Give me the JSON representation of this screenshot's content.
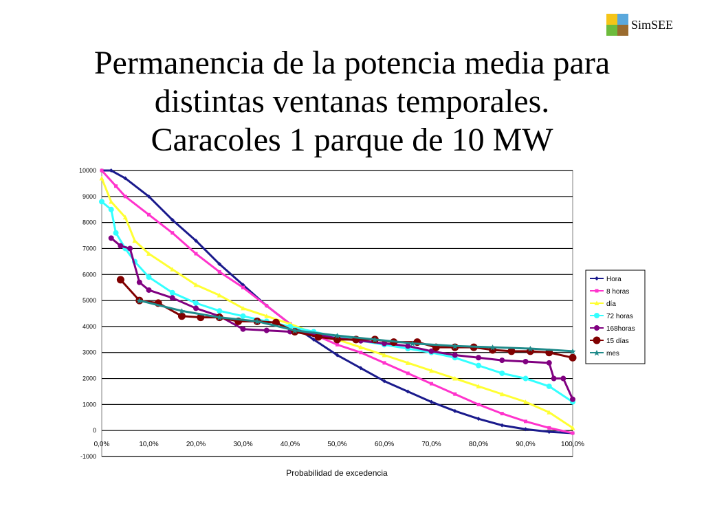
{
  "logo": {
    "text": "SimSEE",
    "colors": [
      "#f5c518",
      "#5aa8dc",
      "#6dbb3c",
      "#9a6b2e"
    ]
  },
  "slide": {
    "title_lines": [
      "Permanencia de la potencia media para",
      "distintas ventanas temporales.",
      "Caracoles 1 parque de 10 MW"
    ]
  },
  "chart_data": {
    "type": "line",
    "title": "",
    "xlabel": "Probabilidad de excedencia",
    "ylabel": "",
    "xlim": [
      0,
      100
    ],
    "ylim": [
      -1000,
      10000
    ],
    "x_ticks": [
      "0,0%",
      "10,0%",
      "20,0%",
      "30,0%",
      "40,0%",
      "50,0%",
      "60,0%",
      "70,0%",
      "80,0%",
      "90,0%",
      "100,0%"
    ],
    "y_ticks": [
      "10000",
      "9000",
      "8000",
      "7000",
      "6000",
      "5000",
      "4000",
      "3000",
      "2000",
      "1000",
      "0",
      "-1000"
    ],
    "grid": "horizontal",
    "legend_position": "right",
    "series": [
      {
        "name": "Hora",
        "color": "#1a1a8c",
        "marker": "small-diamond",
        "points": [
          [
            0,
            10000
          ],
          [
            2,
            10000
          ],
          [
            5,
            9700
          ],
          [
            10,
            9000
          ],
          [
            15,
            8100
          ],
          [
            20,
            7300
          ],
          [
            25,
            6400
          ],
          [
            30,
            5600
          ],
          [
            35,
            4800
          ],
          [
            40,
            4100
          ],
          [
            45,
            3500
          ],
          [
            50,
            2900
          ],
          [
            55,
            2400
          ],
          [
            60,
            1900
          ],
          [
            65,
            1500
          ],
          [
            70,
            1100
          ],
          [
            75,
            750
          ],
          [
            80,
            450
          ],
          [
            85,
            200
          ],
          [
            90,
            50
          ],
          [
            95,
            -50
          ],
          [
            100,
            -100
          ]
        ]
      },
      {
        "name": "8 horas",
        "color": "#ff33cc",
        "marker": "small-square",
        "points": [
          [
            0,
            10000
          ],
          [
            3,
            9400
          ],
          [
            5,
            9000
          ],
          [
            10,
            8300
          ],
          [
            15,
            7600
          ],
          [
            20,
            6800
          ],
          [
            25,
            6100
          ],
          [
            30,
            5500
          ],
          [
            35,
            4800
          ],
          [
            40,
            4100
          ],
          [
            45,
            3700
          ],
          [
            50,
            3300
          ],
          [
            55,
            3000
          ],
          [
            60,
            2600
          ],
          [
            65,
            2200
          ],
          [
            70,
            1800
          ],
          [
            75,
            1400
          ],
          [
            80,
            1000
          ],
          [
            85,
            650
          ],
          [
            90,
            350
          ],
          [
            95,
            100
          ],
          [
            100,
            -100
          ]
        ]
      },
      {
        "name": "día",
        "color": "#ffff33",
        "marker": "small-triangle",
        "points": [
          [
            0,
            9700
          ],
          [
            2,
            8800
          ],
          [
            5,
            8200
          ],
          [
            7,
            7300
          ],
          [
            10,
            6800
          ],
          [
            15,
            6200
          ],
          [
            20,
            5600
          ],
          [
            25,
            5200
          ],
          [
            30,
            4700
          ],
          [
            35,
            4400
          ],
          [
            40,
            4100
          ],
          [
            45,
            3750
          ],
          [
            50,
            3500
          ],
          [
            55,
            3200
          ],
          [
            60,
            2900
          ],
          [
            65,
            2600
          ],
          [
            70,
            2300
          ],
          [
            75,
            2000
          ],
          [
            80,
            1700
          ],
          [
            85,
            1400
          ],
          [
            90,
            1100
          ],
          [
            95,
            700
          ],
          [
            100,
            100
          ]
        ]
      },
      {
        "name": "72 horas",
        "color": "#33ffff",
        "marker": "circle",
        "points": [
          [
            0,
            8800
          ],
          [
            2,
            8500
          ],
          [
            3,
            7600
          ],
          [
            5,
            7000
          ],
          [
            7,
            6500
          ],
          [
            10,
            5900
          ],
          [
            15,
            5300
          ],
          [
            20,
            4900
          ],
          [
            25,
            4600
          ],
          [
            30,
            4400
          ],
          [
            35,
            4200
          ],
          [
            40,
            4000
          ],
          [
            45,
            3800
          ],
          [
            50,
            3600
          ],
          [
            55,
            3450
          ],
          [
            60,
            3300
          ],
          [
            65,
            3150
          ],
          [
            70,
            3000
          ],
          [
            75,
            2800
          ],
          [
            80,
            2500
          ],
          [
            85,
            2200
          ],
          [
            90,
            2000
          ],
          [
            95,
            1700
          ],
          [
            100,
            1100
          ]
        ]
      },
      {
        "name": "168horas",
        "color": "#800080",
        "marker": "circle",
        "points": [
          [
            2,
            7400
          ],
          [
            4,
            7100
          ],
          [
            6,
            7000
          ],
          [
            8,
            5700
          ],
          [
            10,
            5400
          ],
          [
            15,
            5100
          ],
          [
            20,
            4700
          ],
          [
            25,
            4400
          ],
          [
            30,
            3900
          ],
          [
            35,
            3850
          ],
          [
            40,
            3800
          ],
          [
            45,
            3700
          ],
          [
            50,
            3550
          ],
          [
            55,
            3450
          ],
          [
            60,
            3350
          ],
          [
            65,
            3250
          ],
          [
            70,
            3050
          ],
          [
            75,
            2900
          ],
          [
            80,
            2800
          ],
          [
            85,
            2700
          ],
          [
            90,
            2650
          ],
          [
            95,
            2600
          ],
          [
            96,
            2000
          ],
          [
            98,
            2000
          ],
          [
            100,
            1200
          ]
        ]
      },
      {
        "name": "15 días",
        "color": "#800000",
        "marker": "big-circle",
        "points": [
          [
            4,
            5800
          ],
          [
            8,
            5000
          ],
          [
            12,
            4900
          ],
          [
            17,
            4400
          ],
          [
            21,
            4350
          ],
          [
            25,
            4350
          ],
          [
            29,
            4200
          ],
          [
            33,
            4200
          ],
          [
            37,
            4150
          ],
          [
            41,
            3800
          ],
          [
            46,
            3600
          ],
          [
            50,
            3500
          ],
          [
            54,
            3500
          ],
          [
            58,
            3500
          ],
          [
            62,
            3400
          ],
          [
            67,
            3400
          ],
          [
            71,
            3200
          ],
          [
            75,
            3200
          ],
          [
            79,
            3200
          ],
          [
            83,
            3100
          ],
          [
            87,
            3050
          ],
          [
            91,
            3050
          ],
          [
            95,
            3000
          ],
          [
            100,
            2800
          ]
        ]
      },
      {
        "name": "mes",
        "color": "#1f8a8a",
        "marker": "star",
        "points": [
          [
            8,
            5000
          ],
          [
            17,
            4600
          ],
          [
            25,
            4350
          ],
          [
            33,
            4200
          ],
          [
            41,
            3850
          ],
          [
            50,
            3650
          ],
          [
            58,
            3500
          ],
          [
            66,
            3350
          ],
          [
            75,
            3250
          ],
          [
            83,
            3200
          ],
          [
            91,
            3150
          ],
          [
            100,
            3050
          ]
        ]
      }
    ]
  }
}
